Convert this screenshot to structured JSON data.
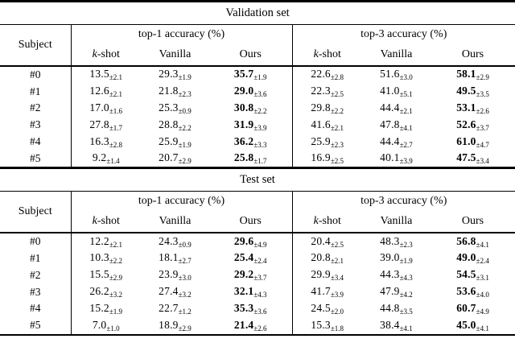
{
  "glyphs": {
    "plus_minus": "±"
  },
  "colors": {
    "text": "#000000",
    "background": "#ffffff",
    "rule": "#000000"
  },
  "sections": [
    {
      "title": "Validation set",
      "subject_header": "Subject",
      "groups": [
        {
          "label": "top-1 accuracy (%)",
          "columns": [
            {
              "italic": "k",
              "text": "-shot"
            },
            {
              "text": "Vanilla"
            },
            {
              "text": "Ours"
            }
          ]
        },
        {
          "label": "top-3 accuracy (%)",
          "columns": [
            {
              "italic": "k",
              "text": "-shot"
            },
            {
              "text": "Vanilla"
            },
            {
              "text": "Ours"
            }
          ]
        }
      ],
      "bold_cols": [
        2,
        5
      ],
      "rows": [
        {
          "subject": "#0",
          "cells": [
            [
              "13.5",
              "2.1"
            ],
            [
              "29.3",
              "1.9"
            ],
            [
              "35.7",
              "1.9"
            ],
            [
              "22.6",
              "2.8"
            ],
            [
              "51.6",
              "3.0"
            ],
            [
              "58.1",
              "2.9"
            ]
          ]
        },
        {
          "subject": "#1",
          "cells": [
            [
              "12.6",
              "2.1"
            ],
            [
              "21.8",
              "2.3"
            ],
            [
              "29.0",
              "3.6"
            ],
            [
              "22.3",
              "2.5"
            ],
            [
              "41.0",
              "5.1"
            ],
            [
              "49.5",
              "3.5"
            ]
          ]
        },
        {
          "subject": "#2",
          "cells": [
            [
              "17.0",
              "1.6"
            ],
            [
              "25.3",
              "0.9"
            ],
            [
              "30.8",
              "2.2"
            ],
            [
              "29.8",
              "2.2"
            ],
            [
              "44.4",
              "2.1"
            ],
            [
              "53.1",
              "2.6"
            ]
          ]
        },
        {
          "subject": "#3",
          "cells": [
            [
              "27.8",
              "1.7"
            ],
            [
              "28.8",
              "2.2"
            ],
            [
              "31.9",
              "3.9"
            ],
            [
              "41.6",
              "2.1"
            ],
            [
              "47.8",
              "4.1"
            ],
            [
              "52.6",
              "3.7"
            ]
          ]
        },
        {
          "subject": "#4",
          "cells": [
            [
              "16.3",
              "2.8"
            ],
            [
              "25.9",
              "1.9"
            ],
            [
              "36.2",
              "3.3"
            ],
            [
              "25.9",
              "2.3"
            ],
            [
              "44.4",
              "2.7"
            ],
            [
              "61.0",
              "4.7"
            ]
          ]
        },
        {
          "subject": "#5",
          "cells": [
            [
              "9.2",
              "1.4"
            ],
            [
              "20.7",
              "2.9"
            ],
            [
              "25.8",
              "1.7"
            ],
            [
              "16.9",
              "2.5"
            ],
            [
              "40.1",
              "3.9"
            ],
            [
              "47.5",
              "3.4"
            ]
          ]
        }
      ]
    },
    {
      "title": "Test set",
      "subject_header": "Subject",
      "groups": [
        {
          "label": "top-1 accuracy (%)",
          "columns": [
            {
              "italic": "k",
              "text": "-shot"
            },
            {
              "text": "Vanilla"
            },
            {
              "text": "Ours"
            }
          ]
        },
        {
          "label": "top-3 accuracy (%)",
          "columns": [
            {
              "italic": "k",
              "text": "-shot"
            },
            {
              "text": "Vanilla"
            },
            {
              "text": "Ours"
            }
          ]
        }
      ],
      "bold_cols": [
        2,
        5
      ],
      "rows": [
        {
          "subject": "#0",
          "cells": [
            [
              "12.2",
              "2.1"
            ],
            [
              "24.3",
              "0.9"
            ],
            [
              "29.6",
              "4.9"
            ],
            [
              "20.4",
              "2.5"
            ],
            [
              "48.3",
              "2.3"
            ],
            [
              "56.8",
              "4.1"
            ]
          ]
        },
        {
          "subject": "#1",
          "cells": [
            [
              "10.3",
              "2.2"
            ],
            [
              "18.1",
              "2.7"
            ],
            [
              "25.4",
              "2.4"
            ],
            [
              "20.8",
              "2.1"
            ],
            [
              "39.0",
              "1.9"
            ],
            [
              "49.0",
              "2.4"
            ]
          ]
        },
        {
          "subject": "#2",
          "cells": [
            [
              "15.5",
              "2.9"
            ],
            [
              "23.9",
              "3.0"
            ],
            [
              "29.2",
              "3.7"
            ],
            [
              "29.9",
              "3.4"
            ],
            [
              "44.3",
              "4.3"
            ],
            [
              "54.5",
              "3.1"
            ]
          ]
        },
        {
          "subject": "#3",
          "cells": [
            [
              "26.2",
              "3.2"
            ],
            [
              "27.4",
              "3.2"
            ],
            [
              "32.1",
              "4.3"
            ],
            [
              "41.7",
              "3.9"
            ],
            [
              "47.9",
              "4.2"
            ],
            [
              "53.6",
              "4.0"
            ]
          ]
        },
        {
          "subject": "#4",
          "cells": [
            [
              "15.2",
              "1.9"
            ],
            [
              "22.7",
              "1.2"
            ],
            [
              "35.3",
              "3.6"
            ],
            [
              "24.5",
              "2.0"
            ],
            [
              "44.8",
              "3.5"
            ],
            [
              "60.7",
              "4.9"
            ]
          ]
        },
        {
          "subject": "#5",
          "cells": [
            [
              "7.0",
              "1.0"
            ],
            [
              "18.9",
              "2.9"
            ],
            [
              "21.4",
              "2.6"
            ],
            [
              "15.3",
              "1.8"
            ],
            [
              "38.4",
              "4.1"
            ],
            [
              "45.0",
              "4.1"
            ]
          ]
        }
      ]
    }
  ]
}
